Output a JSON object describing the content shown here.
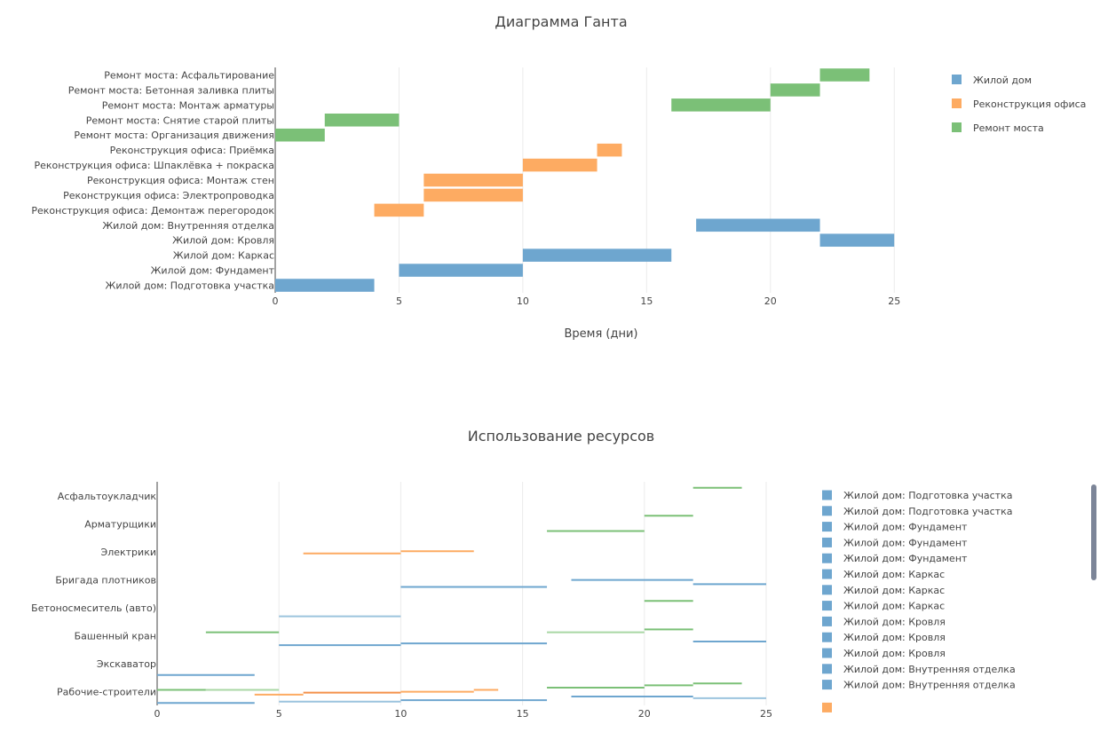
{
  "chart_data": [
    {
      "type": "bar",
      "orientation": "horizontal",
      "title": "Диаграмма Ганта",
      "xlabel": "Время (дни)",
      "ylabel": "",
      "xlim": [
        0,
        27
      ],
      "xticks": [
        0,
        5,
        10,
        15,
        20,
        25
      ],
      "grid": true,
      "legend_position": "top-right",
      "categories": [
        "Жилой дом: Подготовка участка",
        "Жилой дом: Фундамент",
        "Жилой дом: Каркас",
        "Жилой дом: Кровля",
        "Жилой дом: Внутренняя отделка",
        "Реконструкция офиса: Демонтаж перегородок",
        "Реконструкция офиса: Электропроводка",
        "Реконструкция офиса: Монтаж стен",
        "Реконструкция офиса: Шпаклёвка + покраска",
        "Реконструкция офиса: Приёмка",
        "Ремонт моста: Организация движения",
        "Ремонт моста: Снятие старой плиты",
        "Ремонт моста: Монтаж арматуры",
        "Ремонт моста: Бетонная заливка плиты",
        "Ремонт моста: Асфальтирование"
      ],
      "series": [
        {
          "name": "Жилой дом",
          "color": "#6ea6cf",
          "tasks": [
            {
              "category": "Жилой дом: Подготовка участка",
              "start": 0,
              "end": 4
            },
            {
              "category": "Жилой дом: Фундамент",
              "start": 5,
              "end": 10
            },
            {
              "category": "Жилой дом: Каркас",
              "start": 10,
              "end": 16
            },
            {
              "category": "Жилой дом: Кровля",
              "start": 22,
              "end": 25
            },
            {
              "category": "Жилой дом: Внутренняя отделка",
              "start": 17,
              "end": 22
            }
          ]
        },
        {
          "name": "Реконструкция офиса",
          "color": "#fdab62",
          "tasks": [
            {
              "category": "Реконструкция офиса: Демонтаж перегородок",
              "start": 4,
              "end": 6
            },
            {
              "category": "Реконструкция офиса: Электропроводка",
              "start": 6,
              "end": 10
            },
            {
              "category": "Реконструкция офиса: Монтаж стен",
              "start": 6,
              "end": 10
            },
            {
              "category": "Реконструкция офиса: Шпаклёвка + покраска",
              "start": 10,
              "end": 13
            },
            {
              "category": "Реконструкция офиса: Приёмка",
              "start": 13,
              "end": 14
            }
          ]
        },
        {
          "name": "Ремонт моста",
          "color": "#7bc077",
          "tasks": [
            {
              "category": "Ремонт моста: Организация движения",
              "start": 0,
              "end": 2
            },
            {
              "category": "Ремонт моста: Снятие старой плиты",
              "start": 2,
              "end": 5
            },
            {
              "category": "Ремонт моста: Монтаж арматуры",
              "start": 16,
              "end": 20
            },
            {
              "category": "Ремонт моста: Бетонная заливка плиты",
              "start": 20,
              "end": 22
            },
            {
              "category": "Ремонт моста: Асфальтирование",
              "start": 22,
              "end": 24
            }
          ]
        }
      ]
    },
    {
      "type": "line",
      "title": "Использование ресурсов",
      "xlabel": "",
      "ylabel": "",
      "xlim": [
        0,
        25
      ],
      "xticks": [
        0,
        5,
        10,
        15,
        20,
        25
      ],
      "grid": true,
      "legend_position": "right",
      "categories": [
        "Рабочие-строители",
        "Экскаватор",
        "Башенный кран",
        "Бетоносмеситель (авто)",
        "Бригада плотников",
        "Электрики",
        "Арматурщики",
        "Асфальтоукладчик"
      ],
      "segments": [
        {
          "resource": "Асфальтоукладчик",
          "start": 22,
          "end": 24,
          "offset": 0.35,
          "color": "#7bc077"
        },
        {
          "resource": "Арматурщики",
          "start": 16,
          "end": 20,
          "offset": -0.2,
          "color": "#7bc077"
        },
        {
          "resource": "Арматурщики",
          "start": 20,
          "end": 22,
          "offset": 0.35,
          "color": "#7bc077"
        },
        {
          "resource": "Электрики",
          "start": 6,
          "end": 10,
          "offset": 0,
          "color": "#fdab62"
        },
        {
          "resource": "Электрики",
          "start": 10,
          "end": 13,
          "offset": 0.08,
          "color": "#fdab62"
        },
        {
          "resource": "Бригада плотников",
          "start": 10,
          "end": 16,
          "offset": -0.2,
          "color": "#6ea6cf"
        },
        {
          "resource": "Бригада плотников",
          "start": 17,
          "end": 22,
          "offset": 0.05,
          "color": "#6ea6cf"
        },
        {
          "resource": "Бригада плотников",
          "start": 22,
          "end": 25,
          "offset": -0.1,
          "color": "#6ea6cf"
        },
        {
          "resource": "Бетоносмеситель (авто)",
          "start": 20,
          "end": 22,
          "offset": 0.3,
          "color": "#7bc077"
        },
        {
          "resource": "Бетоносмеситель (авто)",
          "start": 5,
          "end": 10,
          "offset": -0.25,
          "color": "#9cc4de"
        },
        {
          "resource": "Башенный кран",
          "start": 2,
          "end": 5,
          "offset": 0.18,
          "color": "#7bc077"
        },
        {
          "resource": "Башенный кран",
          "start": 16,
          "end": 20,
          "offset": 0.18,
          "color": "#a9d7a5"
        },
        {
          "resource": "Башенный кран",
          "start": 20,
          "end": 22,
          "offset": 0.28,
          "color": "#7bc077"
        },
        {
          "resource": "Башенный кран",
          "start": 5,
          "end": 10,
          "offset": -0.28,
          "color": "#6ea6cf"
        },
        {
          "resource": "Башенный кран",
          "start": 10,
          "end": 16,
          "offset": -0.22,
          "color": "#6ea6cf"
        },
        {
          "resource": "Башенный кран",
          "start": 22,
          "end": 25,
          "offset": -0.15,
          "color": "#6ea6cf"
        },
        {
          "resource": "Экскаватор",
          "start": 0,
          "end": 4,
          "offset": -0.35,
          "color": "#6ea6cf"
        },
        {
          "resource": "Рабочие-строители",
          "start": 0,
          "end": 2,
          "offset": 0.12,
          "color": "#7bc077"
        },
        {
          "resource": "Рабочие-строители",
          "start": 2,
          "end": 5,
          "offset": 0.12,
          "color": "#a9d7a5"
        },
        {
          "resource": "Рабочие-строители",
          "start": 4,
          "end": 6,
          "offset": -0.05,
          "color": "#fdab62"
        },
        {
          "resource": "Рабочие-строители",
          "start": 6,
          "end": 10,
          "offset": 0.02,
          "color": "#f4914a"
        },
        {
          "resource": "Рабочие-строители",
          "start": 10,
          "end": 13,
          "offset": 0.05,
          "color": "#fdab62"
        },
        {
          "resource": "Рабочие-строители",
          "start": 13,
          "end": 14,
          "offset": 0.12,
          "color": "#fdab62"
        },
        {
          "resource": "Рабочие-строители",
          "start": 16,
          "end": 20,
          "offset": 0.2,
          "color": "#7bc077"
        },
        {
          "resource": "Рабочие-строители",
          "start": 20,
          "end": 22,
          "offset": 0.28,
          "color": "#7bc077"
        },
        {
          "resource": "Рабочие-строители",
          "start": 22,
          "end": 24,
          "offset": 0.35,
          "color": "#7bc077"
        },
        {
          "resource": "Рабочие-строители",
          "start": 0,
          "end": 4,
          "offset": -0.35,
          "color": "#6ea6cf"
        },
        {
          "resource": "Рабочие-строители",
          "start": 5,
          "end": 10,
          "offset": -0.3,
          "color": "#9cc4de"
        },
        {
          "resource": "Рабочие-строители",
          "start": 10,
          "end": 16,
          "offset": -0.25,
          "color": "#6ea6cf"
        },
        {
          "resource": "Рабочие-строители",
          "start": 17,
          "end": 22,
          "offset": -0.12,
          "color": "#6ea6cf"
        },
        {
          "resource": "Рабочие-строители",
          "start": 22,
          "end": 25,
          "offset": -0.18,
          "color": "#9cc4de"
        }
      ],
      "legend": [
        {
          "name": "Жилой дом: Подготовка участка",
          "color": "#6ea6cf"
        },
        {
          "name": "Жилой дом: Подготовка участка",
          "color": "#6ea6cf"
        },
        {
          "name": "Жилой дом: Фундамент",
          "color": "#6ea6cf"
        },
        {
          "name": "Жилой дом: Фундамент",
          "color": "#6ea6cf"
        },
        {
          "name": "Жилой дом: Фундамент",
          "color": "#6ea6cf"
        },
        {
          "name": "Жилой дом: Каркас",
          "color": "#6ea6cf"
        },
        {
          "name": "Жилой дом: Каркас",
          "color": "#6ea6cf"
        },
        {
          "name": "Жилой дом: Каркас",
          "color": "#6ea6cf"
        },
        {
          "name": "Жилой дом: Кровля",
          "color": "#6ea6cf"
        },
        {
          "name": "Жилой дом: Кровля",
          "color": "#6ea6cf"
        },
        {
          "name": "Жилой дом: Кровля",
          "color": "#6ea6cf"
        },
        {
          "name": "Жилой дом: Внутренняя отделка",
          "color": "#6ea6cf"
        },
        {
          "name": "Жилой дом: Внутренняя отделка",
          "color": "#6ea6cf"
        },
        {
          "name": "",
          "color": "#fdab62"
        }
      ]
    }
  ]
}
